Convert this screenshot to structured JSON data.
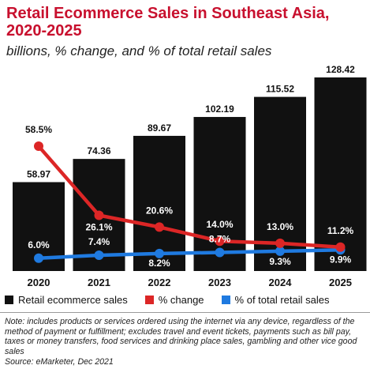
{
  "title": "Retail Ecommerce Sales in Southeast Asia, 2020-2025",
  "subtitle": "billions, % change, and % of total retail sales",
  "legend": [
    {
      "label": "Retail ecommerce sales",
      "color": "#111111"
    },
    {
      "label": "% change",
      "color": "#dc2626"
    },
    {
      "label": "% of total retail sales",
      "color": "#1f7ae0"
    }
  ],
  "note": "Note: includes products or services ordered using the internet via any device, regardless of the method of payment or fulfillment; excludes travel and event tickets, payments such as bill pay, taxes or money transfers, food services and drinking place sales, gambling and other vice good sales",
  "source": "Source: eMarketer, Dec 2021",
  "chart_data": {
    "type": "bar",
    "title": "Retail Ecommerce Sales in Southeast Asia, 2020-2025",
    "subtitle": "billions, % change, and % of total retail sales",
    "categories": [
      "2020",
      "2021",
      "2022",
      "2023",
      "2024",
      "2025"
    ],
    "series": [
      {
        "name": "Retail ecommerce sales",
        "type": "bar",
        "color": "#111111",
        "values": [
          58.97,
          74.36,
          89.67,
          102.19,
          115.52,
          128.42
        ],
        "labels": [
          "58.97",
          "74.36",
          "89.67",
          "102.19",
          "115.52",
          "128.42"
        ]
      },
      {
        "name": "% change",
        "type": "line",
        "color": "#dc2626",
        "values": [
          58.5,
          26.1,
          20.6,
          14.0,
          13.0,
          11.2
        ],
        "labels": [
          "58.5%",
          "26.1%",
          "20.6%",
          "14.0%",
          "13.0%",
          "11.2%"
        ]
      },
      {
        "name": "% of total retail sales",
        "type": "line",
        "color": "#1f7ae0",
        "values": [
          6.0,
          7.4,
          8.2,
          8.7,
          9.3,
          9.9
        ],
        "labels": [
          "6.0%",
          "7.4%",
          "8.2%",
          "8.7%",
          "9.3%",
          "9.9%"
        ]
      }
    ],
    "legend_position": "bottom",
    "grid": false
  }
}
